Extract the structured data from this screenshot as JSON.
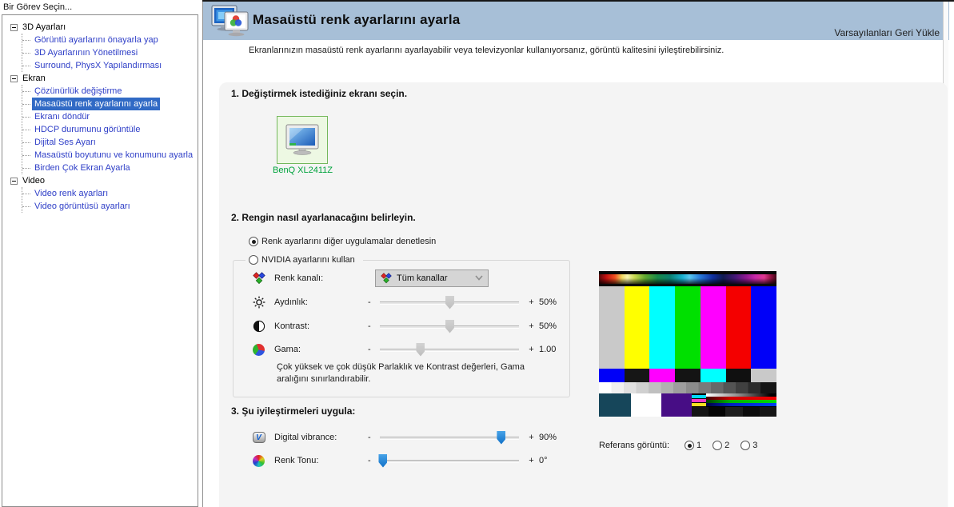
{
  "sidebar": {
    "title": "Bir Görev Seçin...",
    "tree": [
      {
        "label": "3D Ayarları",
        "children": [
          "Görüntü ayarlarını önayarla yap",
          "3D Ayarlarının Yönetilmesi",
          "Surround, PhysX Yapılandırması"
        ]
      },
      {
        "label": "Ekran",
        "children": [
          "Çözünürlük değiştirme",
          "Masaüstü renk ayarlarını ayarla",
          "Ekranı döndür",
          "HDCP durumunu görüntüle",
          "Dijital Ses Ayarı",
          "Masaüstü boyutunu ve konumunu ayarla",
          "Birden Çok Ekran Ayarla"
        ]
      },
      {
        "label": "Video",
        "children": [
          "Video renk ayarları",
          "Video görüntüsü ayarları"
        ]
      }
    ],
    "selected_item": "Masaüstü renk ayarlarını ayarla"
  },
  "header": {
    "title": "Masaüstü renk ayarlarını ayarla",
    "restore_defaults_label": "Varsayılanları Geri Yükle"
  },
  "intro": "Ekranlarınızın masaüstü renk ayarlarını ayarlayabilir veya televizyonlar kullanıyorsanız, görüntü kalitesini iyileştirebilirsiniz.",
  "section1": {
    "heading": "1. Değiştirmek istediğiniz ekranı seçin.",
    "display_name": "BenQ XL2411Z"
  },
  "section2": {
    "heading": "2. Rengin nasıl ayarlanacağını belirleyin.",
    "radio_other_apps": "Renk ayarlarını diğer uygulamalar denetlesin",
    "radio_nvidia": "NVIDIA ayarlarını kullan",
    "color_channel_label": "Renk kanalı:",
    "color_channel_value": "Tüm kanallar",
    "sliders": [
      {
        "label": "Aydınlık:",
        "value": "50%",
        "percent": 50,
        "enabled": false
      },
      {
        "label": "Kontrast:",
        "value": "50%",
        "percent": 50,
        "enabled": false
      },
      {
        "label": "Gama:",
        "value": "1.00",
        "percent": 29,
        "enabled": false
      }
    ],
    "note": "Çok yüksek ve çok düşük Parlaklık ve Kontrast değerleri, Gama aralığını sınırlandırabilir."
  },
  "section3": {
    "heading": "3. Şu iyileştirmeleri uygula:",
    "sliders": [
      {
        "label": "Digital vibrance:",
        "value": "90%",
        "percent": 87,
        "enabled": true
      },
      {
        "label": "Renk Tonu:",
        "value": "0°",
        "percent": 2,
        "enabled": true
      }
    ]
  },
  "reference": {
    "label": "Referans görüntü:",
    "options": [
      "1",
      "2",
      "3"
    ],
    "selected": "1"
  },
  "symbols": {
    "minus": "-",
    "plus": "+"
  },
  "icons": {
    "digital_vibrance_glyph": "V"
  },
  "test_pattern": {
    "main_bars": [
      "#c9c9c9",
      "#ffff00",
      "#00ffff",
      "#00e000",
      "#ff00ff",
      "#f40000",
      "#0000f8"
    ],
    "sub_bars": [
      "#0000f8",
      "#161616",
      "#ff00ff",
      "#141414",
      "#00ffff",
      "#101010",
      "#c9c9c9"
    ]
  },
  "colors": {
    "selection": "#316ac5",
    "link": "#2e3ec7",
    "active_green": "#00a33c",
    "header_bg": "#a7bfd7",
    "slider_thumb_blue": "#1583d8"
  }
}
